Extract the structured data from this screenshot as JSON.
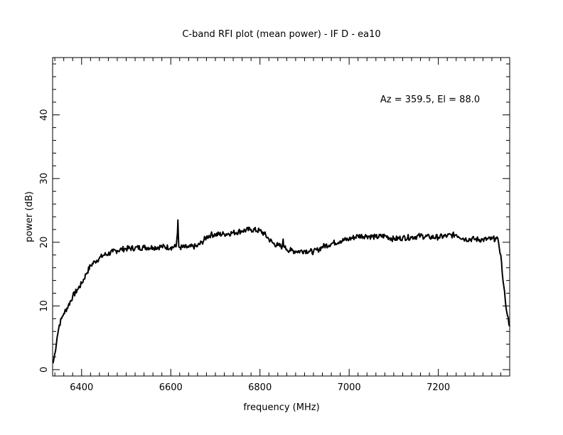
{
  "chart_data": {
    "type": "line",
    "title": "C-band RFI plot (mean power) - IF D - ea10",
    "xlabel": "frequency (MHz)",
    "ylabel": "power (dB)",
    "annotation": "Az = 359.5, El = 88.0",
    "xlim": [
      6335,
      7360
    ],
    "ylim": [
      -1,
      49
    ],
    "x_ticks": [
      6400,
      6600,
      6800,
      7000,
      7200
    ],
    "x_tick_labels": [
      "6400",
      "6600",
      "6800",
      "7000",
      "7200"
    ],
    "y_ticks": [
      0,
      10,
      20,
      30,
      40
    ],
    "y_tick_labels": [
      "0",
      "10",
      "20",
      "30",
      "40"
    ],
    "grid": false,
    "line_color": "#000000",
    "series": [
      {
        "x": [
          6336,
          6340,
          6345,
          6350,
          6355,
          6360,
          6370,
          6380,
          6390,
          6400,
          6410,
          6420,
          6430,
          6440,
          6450,
          6460,
          6470,
          6480,
          6490,
          6500,
          6520,
          6540,
          6560,
          6580,
          6600,
          6612,
          6615,
          6616,
          6617,
          6618,
          6621,
          6640,
          6660,
          6670,
          6680,
          6690,
          6700,
          6720,
          6740,
          6760,
          6780,
          6800,
          6810,
          6820,
          6830,
          6840,
          6850,
          6852,
          6853,
          6855,
          6860,
          6870,
          6880,
          6890,
          6900,
          6910,
          6920,
          6930,
          6940,
          6960,
          6980,
          7000,
          7020,
          7040,
          7060,
          7080,
          7100,
          7120,
          7140,
          7160,
          7180,
          7200,
          7220,
          7240,
          7260,
          7280,
          7300,
          7320,
          7330,
          7335,
          7340,
          7345,
          7350,
          7355,
          7360
        ],
        "y": [
          1.0,
          2.5,
          5.0,
          7.0,
          8.0,
          8.8,
          10.0,
          11.5,
          12.5,
          13.5,
          15.0,
          16.3,
          17.0,
          17.5,
          18.0,
          18.2,
          18.5,
          18.7,
          18.9,
          19.0,
          19.1,
          19.2,
          19.2,
          19.3,
          19.2,
          19.3,
          21.5,
          23.5,
          21.0,
          19.3,
          19.2,
          19.2,
          19.4,
          20.0,
          20.8,
          21.2,
          21.2,
          21.3,
          21.5,
          21.8,
          22.0,
          21.8,
          21.3,
          20.5,
          19.8,
          19.5,
          19.3,
          20.5,
          19.4,
          19.2,
          18.9,
          18.7,
          18.6,
          18.6,
          18.7,
          18.6,
          18.5,
          18.8,
          19.3,
          19.8,
          20.2,
          20.5,
          21.0,
          21.0,
          20.8,
          21.0,
          20.5,
          20.7,
          20.8,
          21.0,
          20.8,
          20.8,
          21.0,
          21.2,
          20.5,
          20.5,
          20.4,
          20.5,
          20.6,
          20.0,
          18.0,
          14.0,
          11.0,
          8.5,
          6.8
        ]
      }
    ]
  }
}
